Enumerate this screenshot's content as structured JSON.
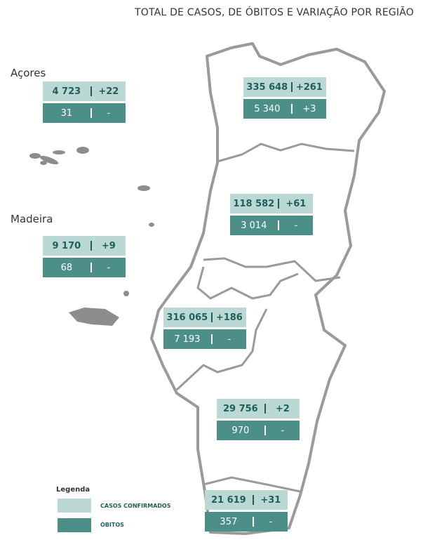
{
  "title": "TOTAL DE CASOS, DE ÓBITOS E VARIAÇÃO POR REGIÃO",
  "regions": [
    {
      "name": "Açores",
      "cases": "4 723",
      "cases_change": "+22",
      "deaths": "31",
      "deaths_change": "-"
    },
    {
      "name": "Madeira",
      "cases": "9 170",
      "cases_change": "+9",
      "deaths": "68",
      "deaths_change": "-"
    },
    {
      "cases": "335 648",
      "cases_change": "+261",
      "deaths": "5 340",
      "deaths_change": "+3"
    },
    {
      "cases": "118 582",
      "cases_change": "+61",
      "deaths": "3 014",
      "deaths_change": "-"
    },
    {
      "cases": "316 065",
      "cases_change": "+186",
      "deaths": "7 193",
      "deaths_change": "-"
    },
    {
      "cases": "29 756",
      "cases_change": "+2",
      "deaths": "970",
      "deaths_change": "-"
    },
    {
      "cases": "21 619",
      "cases_change": "+31",
      "deaths": "357",
      "deaths_change": "-"
    }
  ],
  "legend": {
    "title": "Legenda",
    "items": [
      "CASOS CONFIRMADOS",
      "ÓBITOS"
    ]
  }
}
